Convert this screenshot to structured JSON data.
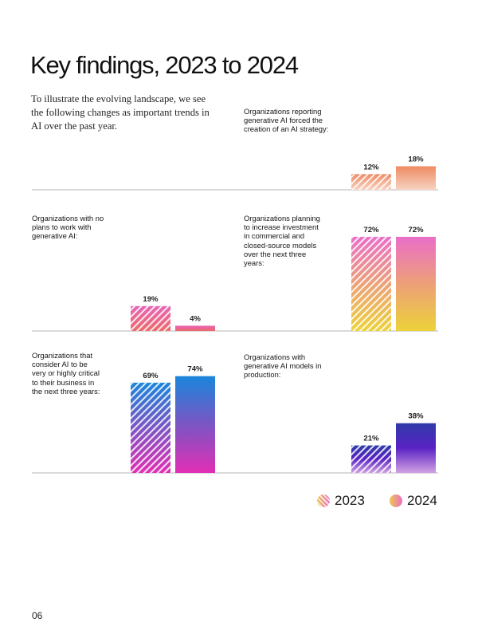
{
  "page": {
    "title": "Key findings, 2023 to 2024",
    "intro": "To illustrate the evolving landscape, we see the following changes as important trends in AI over the past year.",
    "page_number": "06"
  },
  "legend": [
    {
      "label": "2023",
      "style": "hatched"
    },
    {
      "label": "2024",
      "style": "solid"
    }
  ],
  "chart_data": [
    {
      "type": "bar",
      "panel": "top-right",
      "title": "Organizations reporting generative AI forced the creation of an AI strategy:",
      "categories": [
        "2023",
        "2024"
      ],
      "values": [
        12,
        18
      ],
      "labels": [
        "12%",
        "18%"
      ],
      "unit": "%",
      "colors": {
        "top": "#ee8a62",
        "bottom": "#f7d3c3"
      }
    },
    {
      "type": "bar",
      "panel": "middle-left",
      "title": "Organizations with no plans to work with generative AI:",
      "categories": [
        "2023",
        "2024"
      ],
      "values": [
        19,
        4
      ],
      "labels": [
        "19%",
        "4%"
      ],
      "unit": "%",
      "colors": {
        "top": "#e864b6",
        "bottom": "#ec6a6a"
      }
    },
    {
      "type": "bar",
      "panel": "middle-right",
      "title": "Organizations planning to increase investment in commercial and closed-source models over the next three years:",
      "categories": [
        "2023",
        "2024"
      ],
      "values": [
        72,
        72
      ],
      "labels": [
        "72%",
        "72%"
      ],
      "unit": "%",
      "colors": {
        "top": "#ea6ec8",
        "mid": "#eda078",
        "bottom": "#ecd23a"
      }
    },
    {
      "type": "bar",
      "panel": "bottom-left",
      "title": "Organizations that consider AI to be very or highly critical to their business in the next three years:",
      "categories": [
        "2023",
        "2024"
      ],
      "values": [
        69,
        74
      ],
      "labels": [
        "69%",
        "74%"
      ],
      "unit": "%",
      "colors": {
        "top": "#1a86dc",
        "mid": "#7b55c4",
        "bottom": "#e22fb4"
      }
    },
    {
      "type": "bar",
      "panel": "bottom-right",
      "title": "Organizations with generative AI models in production:",
      "categories": [
        "2023",
        "2024"
      ],
      "values": [
        21,
        38
      ],
      "labels": [
        "21%",
        "38%"
      ],
      "unit": "%",
      "colors": {
        "top": "#2e3aa8",
        "mid": "#5a22c4",
        "bottom": "#d2a2e4"
      }
    }
  ]
}
